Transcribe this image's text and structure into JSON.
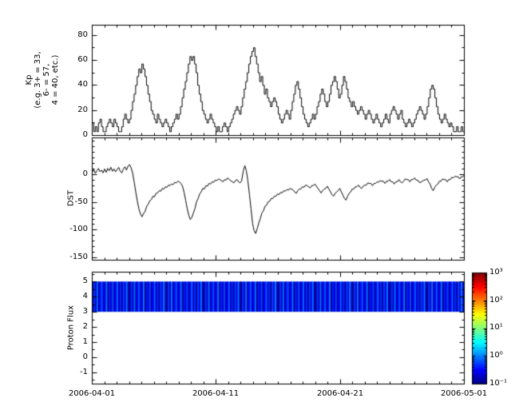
{
  "figure": {
    "bg": "#ffffff",
    "fg": "#000000"
  },
  "x_axis": {
    "start": "2006-04-01",
    "end": "2006-05-01",
    "n_days": 30,
    "tick_labels": [
      "2006-04-01",
      "2006-04-11",
      "2006-04-21",
      "2006-05-01"
    ]
  },
  "chart_data": [
    {
      "type": "line",
      "subtype": "step",
      "name": "kp-index",
      "ylabel_lines": [
        "Kp",
        "(e.g. 3+ = 33,",
        "6- = 57,",
        "4 = 40, etc.)"
      ],
      "ylim": [
        0,
        88
      ],
      "yticks": [
        0,
        20,
        40,
        60,
        80
      ],
      "ytick_labels": [
        "0",
        "20",
        "40",
        "60",
        "80"
      ],
      "minor_y": 10,
      "cadence_hours": 3,
      "line_color": "#000000",
      "values": [
        10,
        3,
        7,
        3,
        10,
        13,
        7,
        3,
        3,
        7,
        10,
        13,
        10,
        7,
        13,
        10,
        7,
        3,
        3,
        7,
        13,
        17,
        13,
        10,
        13,
        20,
        27,
        33,
        40,
        47,
        53,
        50,
        57,
        53,
        47,
        40,
        33,
        27,
        20,
        17,
        13,
        10,
        17,
        13,
        10,
        7,
        10,
        13,
        10,
        7,
        3,
        7,
        10,
        13,
        17,
        13,
        17,
        23,
        30,
        37,
        43,
        50,
        57,
        63,
        60,
        63,
        57,
        50,
        40,
        33,
        27,
        20,
        17,
        13,
        10,
        13,
        17,
        13,
        10,
        7,
        3,
        7,
        3,
        3,
        7,
        10,
        7,
        3,
        7,
        10,
        13,
        17,
        20,
        23,
        20,
        17,
        23,
        30,
        37,
        43,
        50,
        57,
        63,
        67,
        70,
        63,
        57,
        50,
        43,
        47,
        40,
        33,
        37,
        30,
        27,
        23,
        27,
        30,
        27,
        23,
        17,
        13,
        10,
        13,
        17,
        20,
        17,
        13,
        20,
        27,
        33,
        40,
        43,
        37,
        30,
        23,
        17,
        13,
        10,
        7,
        10,
        13,
        17,
        13,
        17,
        23,
        27,
        33,
        37,
        33,
        27,
        23,
        27,
        33,
        40,
        43,
        47,
        43,
        37,
        30,
        33,
        40,
        47,
        43,
        37,
        30,
        27,
        23,
        27,
        23,
        20,
        17,
        20,
        23,
        20,
        17,
        13,
        17,
        20,
        17,
        13,
        10,
        13,
        17,
        13,
        10,
        7,
        10,
        13,
        17,
        13,
        10,
        17,
        20,
        23,
        20,
        17,
        13,
        17,
        20,
        13,
        10,
        7,
        10,
        13,
        10,
        7,
        10,
        13,
        17,
        20,
        23,
        20,
        17,
        13,
        17,
        23,
        30,
        37,
        40,
        37,
        30,
        23,
        17,
        13,
        10,
        13,
        17,
        13,
        10,
        7,
        10,
        7,
        3,
        3,
        7,
        3,
        3,
        7,
        3
      ]
    },
    {
      "type": "line",
      "name": "dst-index",
      "ylabel": "DST",
      "ylim": [
        -154,
        66
      ],
      "yticks": [
        0,
        -50,
        -100,
        -150
      ],
      "ytick_labels": [
        "0",
        "-50",
        "-100",
        "-150"
      ],
      "minor_y": 10,
      "cadence_hours": 3,
      "line_color": "#000000",
      "values": [
        4,
        9,
        2,
        7,
        11,
        5,
        8,
        3,
        10,
        4,
        11,
        7,
        13,
        6,
        10,
        5,
        9,
        13,
        6,
        3,
        10,
        14,
        8,
        15,
        18,
        12,
        2,
        -14,
        -32,
        -48,
        -62,
        -71,
        -76,
        -70,
        -66,
        -57,
        -53,
        -47,
        -45,
        -39,
        -40,
        -34,
        -33,
        -29,
        -30,
        -25,
        -26,
        -22,
        -23,
        -19,
        -20,
        -17,
        -18,
        -14,
        -15,
        -12,
        -13,
        -16,
        -21,
        -32,
        -46,
        -61,
        -73,
        -81,
        -77,
        -69,
        -61,
        -49,
        -43,
        -35,
        -31,
        -25,
        -26,
        -20,
        -21,
        -16,
        -17,
        -13,
        -14,
        -10,
        -11,
        -8,
        -9,
        -11,
        -13,
        -9,
        -10,
        -6,
        -9,
        -11,
        -13,
        -15,
        -11,
        -9,
        -13,
        -15,
        -11,
        6,
        16,
        7,
        -12,
        -36,
        -62,
        -88,
        -101,
        -106,
        -97,
        -87,
        -79,
        -69,
        -65,
        -57,
        -55,
        -49,
        -48,
        -43,
        -43,
        -39,
        -39,
        -35,
        -36,
        -32,
        -33,
        -29,
        -30,
        -27,
        -28,
        -25,
        -26,
        -28,
        -31,
        -34,
        -29,
        -26,
        -26,
        -22,
        -23,
        -19,
        -20,
        -22,
        -24,
        -20,
        -20,
        -17,
        -21,
        -25,
        -29,
        -33,
        -29,
        -26,
        -25,
        -21,
        -26,
        -31,
        -36,
        -39,
        -34,
        -31,
        -29,
        -25,
        -31,
        -37,
        -43,
        -46,
        -39,
        -34,
        -31,
        -26,
        -26,
        -22,
        -22,
        -19,
        -23,
        -25,
        -21,
        -19,
        -19,
        -15,
        -16,
        -16,
        -20,
        -16,
        -16,
        -13,
        -14,
        -11,
        -12,
        -12,
        -16,
        -12,
        -12,
        -9,
        -13,
        -13,
        -17,
        -13,
        -13,
        -9,
        -13,
        -15,
        -12,
        -8,
        -9,
        -9,
        -13,
        -9,
        -9,
        -6,
        -10,
        -10,
        -14,
        -14,
        -12,
        -10,
        -10,
        -7,
        -13,
        -17,
        -25,
        -29,
        -23,
        -19,
        -17,
        -12,
        -12,
        -8,
        -9,
        -9,
        -13,
        -9,
        -9,
        -5,
        -6,
        -3,
        -4,
        -4,
        -8,
        -4,
        -4,
        -1
      ]
    },
    {
      "type": "heatmap",
      "name": "proton-flux",
      "ylabel": "Proton Flux",
      "ylim": [
        -1.75,
        5.65
      ],
      "yticks": [
        5,
        4,
        3,
        2,
        1,
        0,
        -1
      ],
      "ytick_labels": [
        "5",
        "4",
        "3",
        "2",
        "1",
        "0",
        "-1"
      ],
      "band": [
        3,
        5
      ],
      "colorbar": {
        "scale": "log",
        "min": 0.1,
        "max": 1000,
        "colormap": "jet",
        "ticks_log10": [
          3,
          2,
          1,
          0,
          -1
        ],
        "tick_labels": [
          "10³",
          "10²",
          "10¹",
          "10⁰",
          "10⁻¹"
        ]
      },
      "values": [
        0.12,
        0.5,
        0.2,
        0.85,
        0.15,
        0.35,
        0.65,
        0.18,
        0.28,
        0.9,
        0.11,
        0.4,
        0.22,
        0.6,
        0.14,
        0.32,
        0.75,
        0.19,
        0.45,
        0.13,
        0.55,
        0.25,
        0.95,
        0.17,
        0.12,
        0.5,
        0.2,
        0.85,
        0.15,
        0.35,
        0.65,
        0.18,
        0.28,
        0.9,
        0.11,
        0.4,
        0.22,
        0.6,
        0.14,
        0.32,
        0.75,
        0.19,
        0.45,
        0.13,
        0.55,
        0.25,
        0.95,
        0.17,
        0.12,
        0.5,
        0.2,
        0.85,
        0.15,
        0.35,
        0.65,
        0.18,
        0.28,
        0.9,
        0.11,
        0.4,
        0.22,
        0.6,
        0.14,
        0.32,
        0.75,
        0.19,
        0.45,
        0.13,
        0.55,
        0.25,
        0.95,
        0.17,
        0.12,
        0.5,
        0.2,
        0.85,
        0.15,
        0.35,
        0.65,
        0.18,
        0.28,
        0.9,
        0.11,
        0.4,
        0.22,
        0.6,
        0.14,
        0.32,
        0.75,
        0.19,
        0.45,
        0.13,
        0.55,
        0.25,
        0.95,
        0.17,
        0.12,
        0.5,
        0.2,
        0.85,
        0.15,
        0.35,
        0.65,
        0.18,
        0.28,
        0.9,
        0.11,
        0.4,
        0.22,
        0.6,
        0.14,
        0.32,
        0.75,
        0.19,
        0.45,
        0.13,
        0.55,
        0.25,
        0.95,
        0.17,
        0.12,
        0.5,
        0.2,
        0.85,
        0.15,
        0.35,
        0.65,
        0.18,
        0.28,
        0.9,
        0.11,
        0.4,
        0.22,
        0.6,
        0.14,
        0.32,
        0.75,
        0.19,
        0.45,
        0.13,
        0.55,
        0.25,
        0.95,
        0.17,
        0.12,
        0.5,
        0.2,
        0.85,
        0.15,
        0.35,
        0.65,
        0.18,
        0.28,
        0.9,
        0.11,
        0.4,
        0.22,
        0.6,
        0.14,
        0.32,
        0.75,
        0.19,
        0.45,
        0.13,
        0.55,
        0.25,
        0.95,
        0.17,
        0.12,
        0.5,
        0.2,
        0.85,
        0.15,
        0.35,
        0.65,
        0.18,
        0.28,
        0.9,
        0.11,
        0.4,
        0.22,
        0.6,
        0.14,
        0.32,
        0.75,
        0.19,
        0.45,
        0.13,
        0.55,
        0.25,
        0.95,
        0.17,
        0.12,
        0.5,
        0.2,
        0.85,
        0.15,
        0.35,
        0.65,
        0.18,
        0.28,
        0.9,
        0.11,
        0.4,
        0.22,
        0.6,
        0.14,
        0.32,
        0.75,
        0.19,
        0.45,
        0.13,
        0.55,
        0.25,
        0.95,
        0.17,
        0.12,
        0.5,
        0.2,
        0.85,
        0.15,
        0.35,
        0.65,
        0.18,
        0.28,
        0.9,
        0.11,
        0.4,
        0.22,
        0.6,
        0.14,
        0.32,
        0.75,
        0.19,
        0.45,
        0.13,
        0.55,
        0.25,
        0.95,
        0.17
      ]
    }
  ]
}
